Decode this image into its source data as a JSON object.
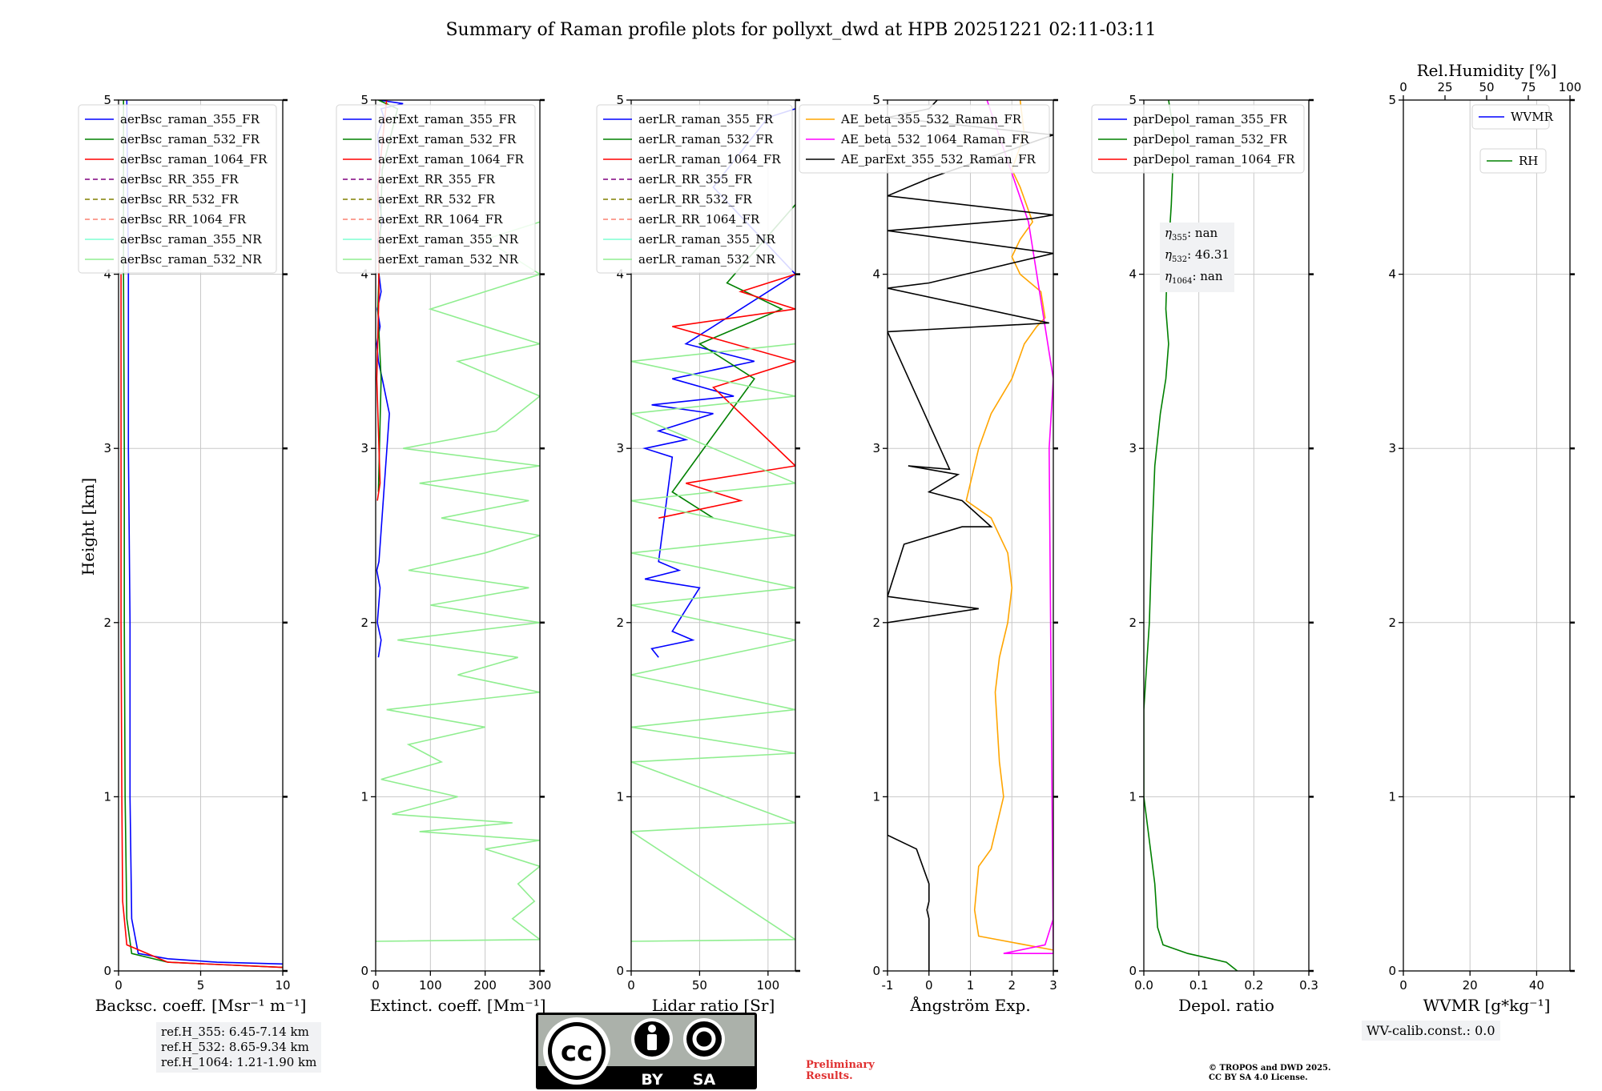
{
  "figure_title": "Summary of Raman profile plots for pollyxt_dwd at HPB 20251221 02:11-03:11",
  "shared_ylabel": "Height [km]",
  "chart_data": [
    {
      "id": "bsc",
      "type": "line",
      "xlabel": "Backsc. coeff. [Msr⁻¹ m⁻¹]",
      "xlim": [
        0,
        10
      ],
      "ylim": [
        0,
        5
      ],
      "xticks": [
        0,
        5,
        10
      ],
      "yticks": [
        0,
        1,
        2,
        3,
        4,
        5
      ],
      "grid": true,
      "legend_loc": "top-left",
      "series": [
        {
          "name": "aerBsc_raman_355_FR",
          "color": "#0000ff",
          "dash": "",
          "x": [
            0.5,
            0.6,
            0.6,
            0.7,
            0.7,
            0.8,
            1.2,
            3.0,
            6.0,
            10.0
          ],
          "y": [
            5.0,
            4.0,
            3.0,
            2.0,
            1.0,
            0.3,
            0.1,
            0.07,
            0.05,
            0.04
          ]
        },
        {
          "name": "aerBsc_raman_532_FR",
          "color": "#008000",
          "dash": "",
          "x": [
            0.3,
            0.3,
            0.35,
            0.35,
            0.4,
            0.5,
            0.8,
            3.0,
            10.0
          ],
          "y": [
            5.0,
            4.0,
            3.0,
            2.0,
            1.0,
            0.3,
            0.1,
            0.05,
            0.02
          ]
        },
        {
          "name": "aerBsc_raman_1064_FR",
          "color": "#ff0000",
          "dash": "",
          "x": [
            0.15,
            0.15,
            0.2,
            0.25,
            0.5,
            3.0,
            10.0
          ],
          "y": [
            4.0,
            2.0,
            1.0,
            0.4,
            0.15,
            0.05,
            0.02
          ]
        },
        {
          "name": "aerBsc_RR_355_FR",
          "color": "#800080",
          "dash": "6,4",
          "x": [],
          "y": []
        },
        {
          "name": "aerBsc_RR_532_FR",
          "color": "#808000",
          "dash": "6,4",
          "x": [],
          "y": []
        },
        {
          "name": "aerBsc_RR_1064_FR",
          "color": "#fa8072",
          "dash": "6,4",
          "x": [],
          "y": []
        },
        {
          "name": "aerBsc_raman_355_NR",
          "color": "#7fffd4",
          "dash": "",
          "x": [],
          "y": []
        },
        {
          "name": "aerBsc_raman_532_NR",
          "color": "#90ee90",
          "dash": "",
          "x": [],
          "y": []
        }
      ]
    },
    {
      "id": "ext",
      "type": "line",
      "xlabel": "Extinct. coeff. [Mm⁻¹]",
      "xlim": [
        0,
        300
      ],
      "ylim": [
        0,
        5
      ],
      "xticks": [
        0,
        100,
        200,
        300
      ],
      "yticks": [
        0,
        1,
        2,
        3,
        4,
        5
      ],
      "grid": true,
      "legend_loc": "top-left",
      "series": [
        {
          "name": "aerExt_raman_355_FR",
          "color": "#0000ff",
          "dash": "",
          "x": [
            5,
            10,
            3,
            8,
            2,
            6,
            25,
            12,
            5,
            2,
            8,
            3,
            10,
            6,
            4,
            12,
            3,
            8,
            4,
            15,
            10,
            50,
            5
          ],
          "y": [
            1.8,
            1.9,
            2.0,
            2.2,
            2.3,
            2.35,
            3.2,
            3.4,
            3.5,
            3.6,
            3.7,
            3.8,
            3.9,
            4.0,
            4.2,
            4.3,
            4.5,
            4.6,
            4.8,
            4.9,
            4.95,
            4.98,
            5.0
          ]
        },
        {
          "name": "aerExt_raman_532_FR",
          "color": "#008000",
          "dash": "",
          "x": [
            5,
            10,
            4,
            8,
            12,
            40,
            5
          ],
          "y": [
            2.75,
            3.4,
            3.8,
            4.2,
            4.6,
            4.95,
            5.0
          ]
        },
        {
          "name": "aerExt_raman_1064_FR",
          "color": "#ff0000",
          "dash": "",
          "x": [
            3,
            8,
            2,
            6,
            4,
            20
          ],
          "y": [
            2.7,
            2.8,
            3.4,
            3.9,
            4.5,
            5.0
          ]
        },
        {
          "name": "aerExt_RR_355_FR",
          "color": "#800080",
          "dash": "6,4",
          "x": [],
          "y": []
        },
        {
          "name": "aerExt_RR_532_FR",
          "color": "#808000",
          "dash": "6,4",
          "x": [],
          "y": []
        },
        {
          "name": "aerExt_RR_1064_FR",
          "color": "#fa8072",
          "dash": "6,4",
          "x": [],
          "y": []
        },
        {
          "name": "aerExt_raman_355_NR",
          "color": "#7fffd4",
          "dash": "",
          "x": [],
          "y": []
        },
        {
          "name": "aerExt_raman_532_NR",
          "color": "#90ee90",
          "dash": "",
          "x": [
            0,
            300,
            250,
            290,
            260,
            300,
            200,
            300,
            80,
            250,
            30,
            150,
            10,
            120,
            60,
            200,
            20,
            300,
            150,
            260,
            40,
            300,
            100,
            280,
            60,
            200,
            300,
            120,
            280,
            80,
            300,
            50,
            220,
            300,
            150,
            300,
            100,
            300,
            200,
            300
          ],
          "y": [
            0.17,
            0.18,
            0.3,
            0.4,
            0.5,
            0.6,
            0.7,
            0.75,
            0.8,
            0.85,
            0.9,
            1.0,
            1.1,
            1.2,
            1.3,
            1.4,
            1.5,
            1.6,
            1.7,
            1.8,
            1.9,
            2.0,
            2.1,
            2.2,
            2.3,
            2.4,
            2.5,
            2.6,
            2.7,
            2.8,
            2.9,
            3.0,
            3.1,
            3.3,
            3.5,
            3.6,
            3.8,
            4.0,
            4.2,
            4.3
          ]
        }
      ]
    },
    {
      "id": "lr",
      "type": "line",
      "xlabel": "Lidar ratio [Sr]",
      "xlim": [
        0,
        120
      ],
      "ylim": [
        0,
        5
      ],
      "xticks": [
        0,
        50,
        100
      ],
      "yticks": [
        0,
        1,
        2,
        3,
        4,
        5
      ],
      "grid": true,
      "legend_loc": "top-left",
      "series": [
        {
          "name": "aerLR_raman_355_FR",
          "color": "#0000ff",
          "dash": "",
          "x": [
            20,
            15,
            45,
            30,
            50,
            10,
            35,
            20,
            30,
            10,
            40,
            20,
            60,
            15,
            75,
            30,
            90,
            40,
            120,
            60,
            100,
            120
          ],
          "y": [
            1.8,
            1.85,
            1.9,
            1.95,
            2.2,
            2.25,
            2.3,
            2.35,
            2.95,
            3.0,
            3.05,
            3.1,
            3.2,
            3.25,
            3.3,
            3.4,
            3.5,
            3.6,
            4.0,
            4.5,
            4.9,
            4.95
          ]
        },
        {
          "name": "aerLR_raman_532_FR",
          "color": "#008000",
          "dash": "",
          "x": [
            60,
            30,
            90,
            50,
            110,
            70,
            120
          ],
          "y": [
            2.6,
            2.75,
            3.4,
            3.6,
            3.8,
            3.95,
            4.4
          ]
        },
        {
          "name": "aerLR_raman_1064_FR",
          "color": "#ff0000",
          "dash": "",
          "x": [
            20,
            80,
            40,
            120,
            60,
            120,
            30,
            120,
            80,
            120
          ],
          "y": [
            2.6,
            2.7,
            2.8,
            2.9,
            3.35,
            3.5,
            3.7,
            3.8,
            3.9,
            4.0
          ]
        },
        {
          "name": "aerLR_RR_355_FR",
          "color": "#800080",
          "dash": "6,4",
          "x": [],
          "y": []
        },
        {
          "name": "aerLR_RR_532_FR",
          "color": "#808000",
          "dash": "6,4",
          "x": [],
          "y": []
        },
        {
          "name": "aerLR_RR_1064_FR",
          "color": "#fa8072",
          "dash": "6,4",
          "x": [],
          "y": []
        },
        {
          "name": "aerLR_raman_355_NR",
          "color": "#7fffd4",
          "dash": "",
          "x": [],
          "y": []
        },
        {
          "name": "aerLR_raman_532_NR",
          "color": "#90ee90",
          "dash": "",
          "x": [
            0,
            120,
            0,
            120,
            0,
            120,
            0,
            120,
            0,
            120,
            0,
            120,
            0,
            120,
            0,
            120,
            0,
            120,
            0,
            120
          ],
          "y": [
            0.17,
            0.18,
            0.8,
            0.85,
            1.2,
            1.25,
            1.4,
            1.5,
            1.7,
            1.9,
            2.1,
            2.2,
            2.4,
            2.5,
            2.7,
            2.8,
            3.2,
            3.3,
            3.5,
            3.6
          ]
        }
      ]
    },
    {
      "id": "ae",
      "type": "line",
      "xlabel": "Ångström Exp.",
      "xlim": [
        -1,
        3
      ],
      "ylim": [
        0,
        5
      ],
      "xticks": [
        -1,
        0,
        1,
        2,
        3
      ],
      "yticks": [
        0,
        1,
        2,
        3,
        4,
        5
      ],
      "grid": true,
      "legend_loc": "top-left",
      "series": [
        {
          "name": "AE_beta_355_532_Raman_FR",
          "color": "#ffa500",
          "dash": "",
          "x": [
            3.0,
            1.2,
            1.1,
            1.2,
            1.5,
            1.8,
            1.7,
            1.6,
            1.7,
            1.9,
            2.0,
            1.9,
            1.5,
            0.9,
            1.2,
            1.5,
            2.0,
            2.3,
            2.6,
            2.8,
            2.7,
            2.2,
            2.0,
            2.2,
            2.5,
            2.2,
            2.0,
            2.3,
            2.2
          ],
          "y": [
            0.12,
            0.2,
            0.35,
            0.6,
            0.7,
            1.0,
            1.2,
            1.6,
            1.8,
            2.0,
            2.2,
            2.4,
            2.6,
            2.7,
            3.0,
            3.2,
            3.4,
            3.6,
            3.7,
            3.75,
            3.9,
            4.0,
            4.1,
            4.2,
            4.3,
            4.5,
            4.6,
            4.8,
            5.0
          ]
        },
        {
          "name": "AE_beta_532_1064_Raman_FR",
          "color": "#ff00ff",
          "dash": "",
          "x": [
            3.0,
            2.8,
            1.8,
            3.0,
            2.9,
            3.0,
            2.4,
            1.4
          ],
          "y": [
            0.3,
            0.15,
            0.1,
            0.1,
            3.0,
            3.4,
            4.3,
            5.0
          ]
        },
        {
          "name": "AE_parExt_355_532_Raman_FR",
          "color": "#000000",
          "dash": "",
          "x": [
            0.0,
            0.0,
            -0.05,
            0.0,
            0.0,
            -0.3,
            -1.0,
            -1.0,
            1.2,
            -1.0,
            -0.6,
            0.8,
            1.5,
            0.8,
            0.0,
            0.7,
            -0.5,
            0.5,
            -1.0,
            2.9,
            -1.0,
            0.0,
            3.0,
            -1.0,
            2.5,
            3.0,
            -1.0,
            0.0,
            3.0,
            -1.0,
            0.0,
            0.2
          ],
          "y": [
            0.0,
            0.3,
            0.35,
            0.4,
            0.5,
            0.7,
            0.78,
            2.0,
            2.08,
            2.15,
            2.45,
            2.55,
            2.55,
            2.7,
            2.75,
            2.85,
            2.9,
            2.88,
            3.67,
            3.72,
            3.92,
            3.95,
            4.12,
            4.25,
            4.32,
            4.34,
            4.45,
            4.55,
            4.8,
            4.9,
            4.95,
            5.0
          ]
        }
      ]
    },
    {
      "id": "depol",
      "type": "line",
      "xlabel": "Depol. ratio",
      "xlim": [
        0,
        0.3
      ],
      "ylim": [
        0,
        5
      ],
      "xticks": [
        0.0,
        0.1,
        0.2,
        0.3
      ],
      "yticks": [
        0,
        1,
        2,
        3,
        4,
        5
      ],
      "grid": true,
      "legend_loc": "top-left",
      "series": [
        {
          "name": "parDepol_raman_355_FR",
          "color": "#0000ff",
          "dash": "",
          "x": [],
          "y": []
        },
        {
          "name": "parDepol_raman_532_FR",
          "color": "#008000",
          "dash": "",
          "x": [
            0.17,
            0.15,
            0.08,
            0.035,
            0.025,
            0.02,
            0.0,
            0.0,
            0.01,
            0.015,
            0.02,
            0.03,
            0.04,
            0.045,
            0.04,
            0.042,
            0.05,
            0.055,
            0.045
          ],
          "y": [
            0.0,
            0.05,
            0.1,
            0.15,
            0.25,
            0.5,
            1.0,
            1.5,
            2.0,
            2.5,
            2.9,
            3.2,
            3.4,
            3.6,
            3.8,
            4.0,
            4.4,
            4.8,
            5.0
          ]
        },
        {
          "name": "parDepol_raman_1064_FR",
          "color": "#ff0000",
          "dash": "",
          "x": [],
          "y": []
        }
      ]
    },
    {
      "id": "wv",
      "type": "line",
      "xlabel": "WVMR [g*kg⁻¹]",
      "x2label": "Rel.Humidity [%]",
      "xlim": [
        0,
        50
      ],
      "ylim": [
        0,
        5
      ],
      "xticks": [
        0,
        20,
        40
      ],
      "x2lim": [
        0,
        100
      ],
      "x2ticks": [
        0,
        25,
        50,
        75,
        100
      ],
      "yticks": [
        0,
        1,
        2,
        3,
        4,
        5
      ],
      "grid": true,
      "legend_loc": "top-right",
      "series": [
        {
          "name": "WVMR",
          "color": "#0000ff",
          "dash": "",
          "x": [],
          "y": []
        },
        {
          "name": "RH",
          "color": "#008000",
          "dash": "",
          "x": [],
          "y": []
        }
      ]
    }
  ],
  "depol_annotation": [
    {
      "symbol": "η",
      "sub": "355",
      "value": ": nan"
    },
    {
      "symbol": "η",
      "sub": "532",
      "value": ": 46.31"
    },
    {
      "symbol": "η",
      "sub": "1064",
      "value": ": nan"
    }
  ],
  "ref_heights": [
    "ref.H_355: 6.45-7.14 km",
    "ref.H_532: 8.65-9.34 km",
    "ref.H_1064: 1.21-1.90 km"
  ],
  "wv_calib": "WV-calib.const.: 0.0",
  "license_logo": {
    "cc": "cc",
    "by": "BY",
    "sa": "SA",
    "colors": {
      "frame": "#000000",
      "body": "#abb1aa",
      "bar": "#000000"
    }
  },
  "preliminary": [
    "Preliminary",
    "Results."
  ],
  "copyright": [
    "© TROPOS and DWD 2025.",
    "CC BY SA 4.0 License."
  ]
}
